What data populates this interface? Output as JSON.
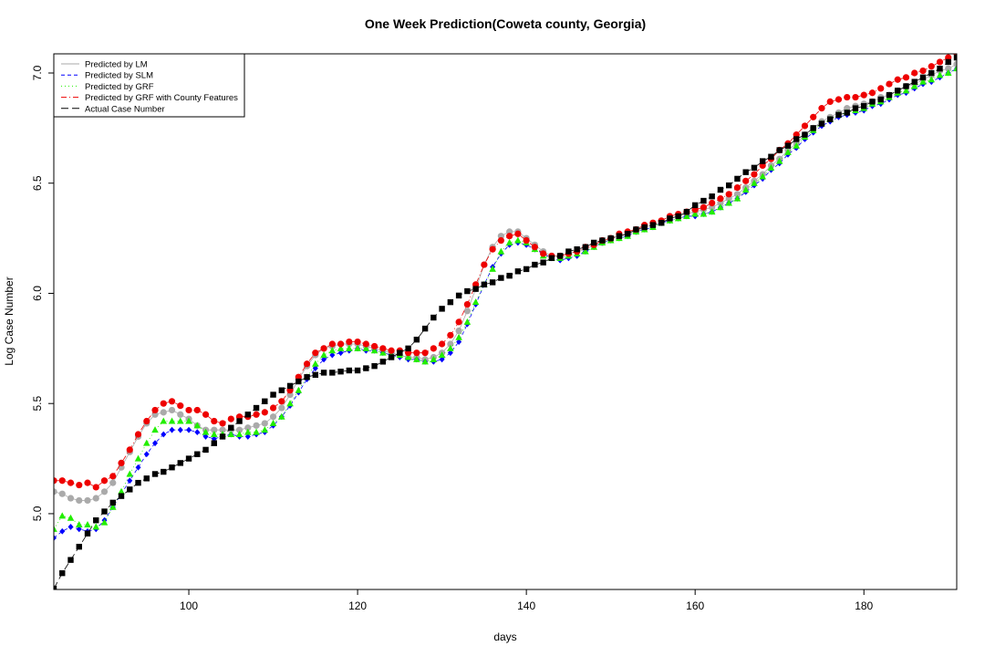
{
  "chart_data": {
    "type": "line",
    "title": "One Week Prediction(Coweta county, Georgia)",
    "x_label": "days",
    "y_label": "Log Case Number",
    "x": [
      84,
      85,
      86,
      87,
      88,
      89,
      90,
      91,
      92,
      93,
      94,
      95,
      96,
      97,
      98,
      99,
      100,
      101,
      102,
      103,
      104,
      105,
      106,
      107,
      108,
      109,
      110,
      111,
      112,
      113,
      114,
      115,
      116,
      117,
      118,
      119,
      120,
      121,
      122,
      123,
      124,
      125,
      126,
      127,
      128,
      129,
      130,
      131,
      132,
      133,
      134,
      135,
      136,
      137,
      138,
      139,
      140,
      141,
      142,
      143,
      144,
      145,
      146,
      147,
      148,
      149,
      150,
      151,
      152,
      153,
      154,
      155,
      156,
      157,
      158,
      159,
      160,
      161,
      162,
      163,
      164,
      165,
      166,
      167,
      168,
      169,
      170,
      171,
      172,
      173,
      174,
      175,
      176,
      177,
      178,
      179,
      180,
      181,
      182,
      183,
      184,
      185,
      186,
      187,
      188,
      189,
      190,
      191
    ],
    "xlim": [
      84,
      191
    ],
    "xticks": [
      100,
      120,
      140,
      160,
      180
    ],
    "ylim": [
      4.656,
      7.087
    ],
    "yticks": [
      {
        "value": 5,
        "label": "5.0"
      },
      5.5,
      {
        "value": 6,
        "label": "6.0"
      },
      6.5,
      {
        "value": 7,
        "label": "7.0"
      }
    ],
    "legend_position": "top-left",
    "series": [
      {
        "name": "Predicted by LM",
        "color": "#aaaaaa",
        "marker": "circle",
        "line_style": "solid",
        "values": [
          5.1,
          5.09,
          5.07,
          5.06,
          5.06,
          5.07,
          5.1,
          5.14,
          5.21,
          5.28,
          5.35,
          5.41,
          5.45,
          5.46,
          5.47,
          5.45,
          5.43,
          5.4,
          5.38,
          5.38,
          5.38,
          5.38,
          5.38,
          5.39,
          5.4,
          5.41,
          5.44,
          5.48,
          5.54,
          5.61,
          5.67,
          5.72,
          5.75,
          5.76,
          5.77,
          5.77,
          5.77,
          5.76,
          5.75,
          5.74,
          5.73,
          5.72,
          5.71,
          5.71,
          5.7,
          5.71,
          5.73,
          5.77,
          5.83,
          5.92,
          6.02,
          6.13,
          6.21,
          6.26,
          6.28,
          6.28,
          6.25,
          6.22,
          6.19,
          6.17,
          6.17,
          6.18,
          6.19,
          6.2,
          6.22,
          6.23,
          6.25,
          6.26,
          6.27,
          6.28,
          6.3,
          6.31,
          6.32,
          6.34,
          6.35,
          6.36,
          6.37,
          6.38,
          6.39,
          6.41,
          6.43,
          6.45,
          6.48,
          6.51,
          6.54,
          6.58,
          6.61,
          6.65,
          6.68,
          6.72,
          6.75,
          6.78,
          6.8,
          6.82,
          6.84,
          6.85,
          6.86,
          6.87,
          6.89,
          6.9,
          6.92,
          6.94,
          6.95,
          6.97,
          6.99,
          7.01,
          7.02,
          7.04
        ]
      },
      {
        "name": "Predicted by SLM",
        "color": "#0000ff",
        "marker": "diamond",
        "line_style": "dashed",
        "values": [
          4.89,
          4.92,
          4.94,
          4.93,
          4.92,
          4.93,
          4.97,
          5.03,
          5.09,
          5.15,
          5.21,
          5.27,
          5.32,
          5.36,
          5.38,
          5.38,
          5.38,
          5.37,
          5.35,
          5.34,
          5.35,
          5.36,
          5.35,
          5.35,
          5.36,
          5.37,
          5.4,
          5.44,
          5.49,
          5.55,
          5.61,
          5.66,
          5.7,
          5.72,
          5.73,
          5.74,
          5.75,
          5.74,
          5.74,
          5.73,
          5.72,
          5.71,
          5.7,
          5.7,
          5.69,
          5.69,
          5.7,
          5.73,
          5.78,
          5.86,
          5.95,
          6.04,
          6.12,
          6.18,
          6.22,
          6.23,
          6.22,
          6.2,
          6.18,
          6.16,
          6.15,
          6.16,
          6.17,
          6.19,
          6.21,
          6.23,
          6.24,
          6.25,
          6.26,
          6.28,
          6.29,
          6.3,
          6.32,
          6.33,
          6.34,
          6.35,
          6.35,
          6.36,
          6.37,
          6.39,
          6.41,
          6.43,
          6.46,
          6.49,
          6.52,
          6.56,
          6.59,
          6.63,
          6.66,
          6.7,
          6.73,
          6.76,
          6.78,
          6.8,
          6.81,
          6.82,
          6.83,
          6.85,
          6.86,
          6.88,
          6.9,
          6.91,
          6.93,
          6.95,
          6.96,
          6.98,
          7.0,
          7.02
        ]
      },
      {
        "name": "Predicted by GRF",
        "color": "#22ee00",
        "marker": "triangle",
        "line_style": "dotted",
        "values": [
          4.93,
          4.99,
          4.98,
          4.95,
          4.95,
          4.94,
          4.96,
          5.03,
          5.1,
          5.18,
          5.25,
          5.32,
          5.38,
          5.42,
          5.42,
          5.42,
          5.42,
          5.4,
          5.37,
          5.36,
          5.36,
          5.36,
          5.36,
          5.37,
          5.37,
          5.38,
          5.41,
          5.44,
          5.5,
          5.56,
          5.62,
          5.68,
          5.72,
          5.74,
          5.75,
          5.75,
          5.75,
          5.75,
          5.74,
          5.73,
          5.72,
          5.72,
          5.71,
          5.7,
          5.69,
          5.7,
          5.72,
          5.75,
          5.8,
          5.87,
          5.96,
          6.04,
          6.11,
          6.19,
          6.23,
          6.24,
          6.23,
          6.2,
          6.17,
          6.16,
          6.16,
          6.17,
          6.18,
          6.19,
          6.21,
          6.23,
          6.24,
          6.25,
          6.26,
          6.28,
          6.29,
          6.3,
          6.32,
          6.33,
          6.34,
          6.35,
          6.36,
          6.36,
          6.37,
          6.39,
          6.41,
          6.43,
          6.47,
          6.5,
          6.53,
          6.57,
          6.6,
          6.64,
          6.67,
          6.71,
          6.74,
          6.77,
          6.79,
          6.81,
          6.82,
          6.83,
          6.84,
          6.86,
          6.87,
          6.89,
          6.91,
          6.92,
          6.94,
          6.96,
          6.97,
          6.99,
          7.0,
          7.02
        ]
      },
      {
        "name": "Predicted by GRF with County Features",
        "color": "#ee0000",
        "marker": "circle",
        "line_style": "dashdot",
        "values": [
          5.15,
          5.15,
          5.14,
          5.13,
          5.14,
          5.12,
          5.15,
          5.17,
          5.23,
          5.29,
          5.36,
          5.42,
          5.47,
          5.5,
          5.51,
          5.49,
          5.47,
          5.47,
          5.45,
          5.42,
          5.41,
          5.43,
          5.44,
          5.44,
          5.45,
          5.46,
          5.48,
          5.51,
          5.56,
          5.62,
          5.68,
          5.73,
          5.75,
          5.77,
          5.77,
          5.78,
          5.78,
          5.77,
          5.76,
          5.75,
          5.74,
          5.74,
          5.73,
          5.73,
          5.73,
          5.75,
          5.77,
          5.81,
          5.87,
          5.95,
          6.04,
          6.13,
          6.2,
          6.24,
          6.26,
          6.27,
          6.24,
          6.21,
          6.18,
          6.17,
          6.17,
          6.18,
          6.19,
          6.21,
          6.22,
          6.24,
          6.25,
          6.27,
          6.28,
          6.29,
          6.31,
          6.32,
          6.33,
          6.35,
          6.36,
          6.37,
          6.38,
          6.39,
          6.41,
          6.43,
          6.45,
          6.48,
          6.51,
          6.54,
          6.58,
          6.61,
          6.65,
          6.68,
          6.72,
          6.76,
          6.8,
          6.84,
          6.87,
          6.88,
          6.89,
          6.89,
          6.9,
          6.91,
          6.93,
          6.95,
          6.97,
          6.98,
          7.0,
          7.01,
          7.03,
          7.05,
          7.07,
          7.09
        ]
      },
      {
        "name": "Actual Case Number",
        "color": "#000000",
        "marker": "square",
        "line_style": "longdash",
        "values": [
          4.66,
          4.73,
          4.79,
          4.85,
          4.91,
          4.97,
          5.01,
          5.05,
          5.08,
          5.11,
          5.14,
          5.16,
          5.18,
          5.19,
          5.21,
          5.23,
          5.25,
          5.27,
          5.29,
          5.32,
          5.35,
          5.39,
          5.42,
          5.45,
          5.48,
          5.51,
          5.54,
          5.56,
          5.58,
          5.6,
          5.62,
          5.63,
          5.64,
          5.64,
          5.645,
          5.65,
          5.65,
          5.66,
          5.67,
          5.69,
          5.71,
          5.73,
          5.75,
          5.79,
          5.84,
          5.89,
          5.93,
          5.96,
          5.99,
          6.01,
          6.02,
          6.04,
          6.05,
          6.07,
          6.08,
          6.1,
          6.11,
          6.13,
          6.14,
          6.16,
          6.17,
          6.19,
          6.2,
          6.21,
          6.23,
          6.24,
          6.25,
          6.26,
          6.27,
          6.29,
          6.3,
          6.31,
          6.32,
          6.34,
          6.35,
          6.37,
          6.4,
          6.42,
          6.44,
          6.47,
          6.49,
          6.52,
          6.55,
          6.57,
          6.6,
          6.62,
          6.65,
          6.67,
          6.7,
          6.72,
          6.75,
          6.77,
          6.79,
          6.81,
          6.82,
          6.84,
          6.85,
          6.87,
          6.88,
          6.9,
          6.92,
          6.94,
          6.96,
          6.98,
          7.0,
          7.02,
          7.05,
          7.07
        ]
      }
    ]
  }
}
